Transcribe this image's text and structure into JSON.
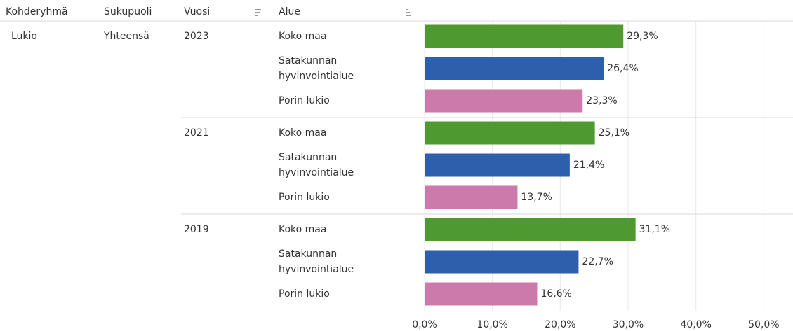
{
  "chart_data": {
    "type": "bar",
    "orientation": "horizontal",
    "columns": [
      "Kohderyhmä",
      "Sukupuoli",
      "Vuosi",
      "Alue"
    ],
    "kohderyhma": "Lukio",
    "sukupuoli": "Yhteensä",
    "years": [
      "2023",
      "2021",
      "2019"
    ],
    "series": [
      {
        "name": "Koko maa",
        "color": "#4f9a2e",
        "values": [
          29.3,
          25.1,
          31.1
        ],
        "value_labels": [
          "29,3%",
          "25,1%",
          "31,1%"
        ]
      },
      {
        "name": "Satakunnan hyvinvointialue",
        "color": "#2e5fac",
        "values": [
          26.4,
          21.4,
          22.7
        ],
        "value_labels": [
          "26,4%",
          "21,4%",
          "22,7%"
        ]
      },
      {
        "name": "Porin lukio",
        "color": "#cc79ab",
        "values": [
          23.3,
          13.7,
          16.6
        ],
        "value_labels": [
          "23,3%",
          "13,7%",
          "16,6%"
        ]
      }
    ],
    "xlim": [
      0,
      54
    ],
    "xticks": [
      {
        "value": 0,
        "label": "0,0%"
      },
      {
        "value": 10,
        "label": "10,0%"
      },
      {
        "value": 20,
        "label": "20,0%"
      },
      {
        "value": 30,
        "label": "30,0%"
      },
      {
        "value": 40,
        "label": "40,0%"
      },
      {
        "value": 50,
        "label": "50,0%"
      }
    ],
    "grid": true
  }
}
